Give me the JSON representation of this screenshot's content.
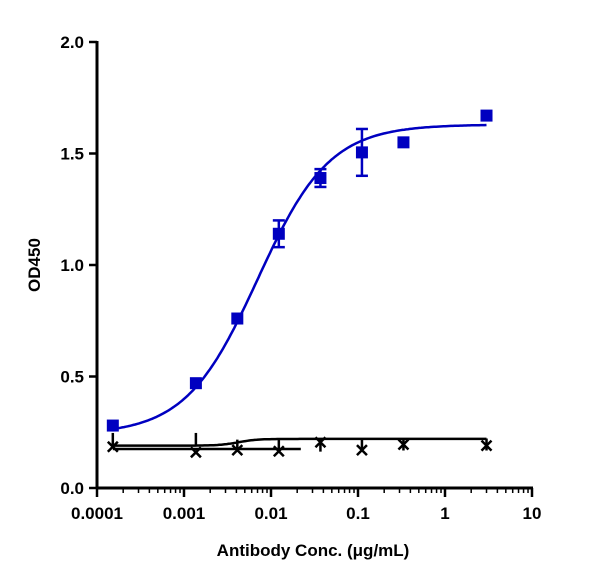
{
  "chart_data": {
    "type": "scatter",
    "title": "",
    "xlabel": "Antibody Conc. (μg/mL)",
    "ylabel": "OD450",
    "xscale": "log",
    "xlim": [
      0.0001,
      10
    ],
    "ylim": [
      0,
      2.0
    ],
    "xticks": [
      "0.0001",
      "0.001",
      "0.01",
      "0.1",
      "1",
      "10"
    ],
    "xtick_values": [
      0.0001,
      0.001,
      0.01,
      0.1,
      1,
      10
    ],
    "yticks": [
      "0.0",
      "0.5",
      "1.0",
      "1.5",
      "2.0"
    ],
    "ytick_values": [
      0,
      0.5,
      1.0,
      1.5,
      2.0
    ],
    "grid": false,
    "series": [
      {
        "marker": "square",
        "color": "#0000C0",
        "x": [
          0.000152,
          0.00137,
          0.0041,
          0.0123,
          0.037,
          0.111,
          0.333,
          3
        ],
        "y": [
          0.28,
          0.47,
          0.76,
          1.14,
          1.39,
          1.505,
          1.55,
          1.67
        ],
        "err": [
          0,
          0,
          0,
          0.06,
          0.04,
          0.105,
          0,
          0
        ],
        "fit": {
          "model": "4PL",
          "bottom": 0.24,
          "top": 1.63,
          "ec50": 0.007,
          "hill": 1.05
        }
      },
      {
        "marker": "plus",
        "color": "#000000",
        "x": [
          0.000152,
          0.00137,
          0.0041,
          0.0123,
          0.037,
          0.111,
          0.333,
          3
        ],
        "y": [
          0.22,
          0.22,
          0.19,
          0.19,
          0.19,
          0.19,
          0.195,
          0.195
        ],
        "fit": {
          "model": "4PL",
          "bottom": 0.19,
          "top": 0.22,
          "ec50": 0.0042,
          "hill": 4
        }
      },
      {
        "marker": "x",
        "color": "#000000",
        "x": [
          0.000152,
          0.00137,
          0.0041,
          0.0123,
          0.037,
          0.111,
          0.333,
          3
        ],
        "y": [
          0.185,
          0.16,
          0.17,
          0.165,
          0.205,
          0.17,
          0.195,
          0.19
        ],
        "fit": {
          "model": "line",
          "y": 0.175,
          "xrange": [
            0.000152,
            0.022
          ]
        }
      }
    ]
  }
}
